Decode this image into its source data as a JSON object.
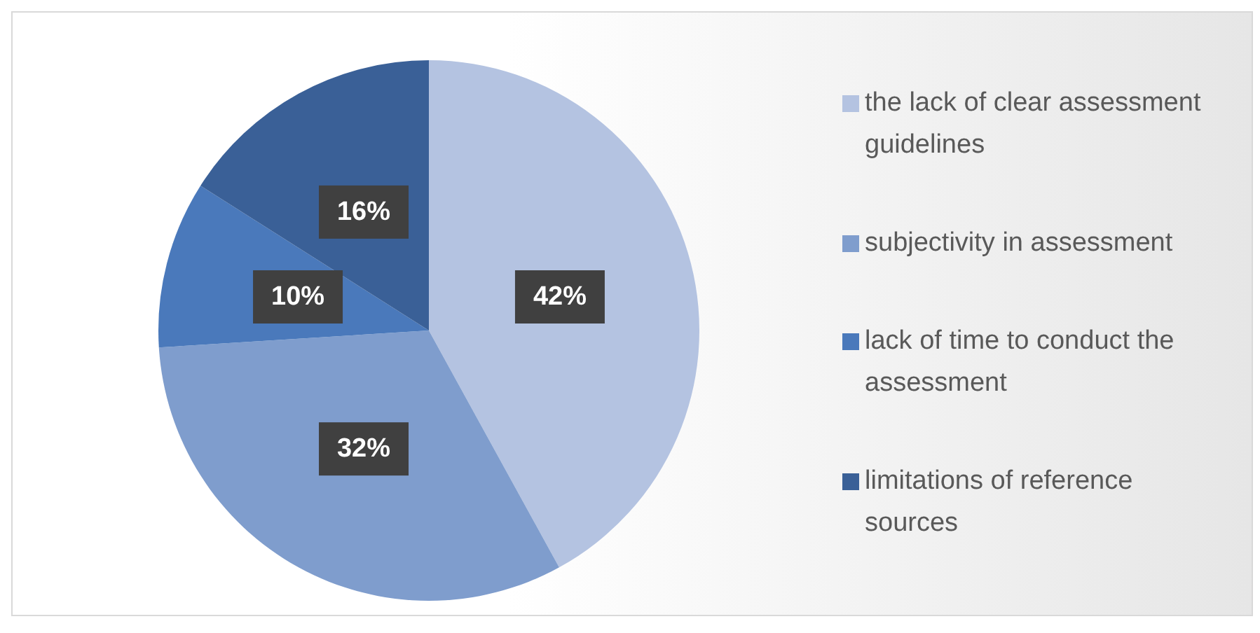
{
  "chart_data": {
    "type": "pie",
    "categories": [
      "the lack of clear assessment guidelines",
      "subjectivity in assessment",
      "lack of time to conduct the assessment",
      "limitations of reference sources"
    ],
    "values": [
      42,
      32,
      10,
      16
    ],
    "colors": [
      "#b4c3e1",
      "#7f9dcd",
      "#4a79bb",
      "#3a6097"
    ],
    "value_labels": [
      "42%",
      "32%",
      "10%",
      "16%"
    ],
    "legend": "right"
  }
}
